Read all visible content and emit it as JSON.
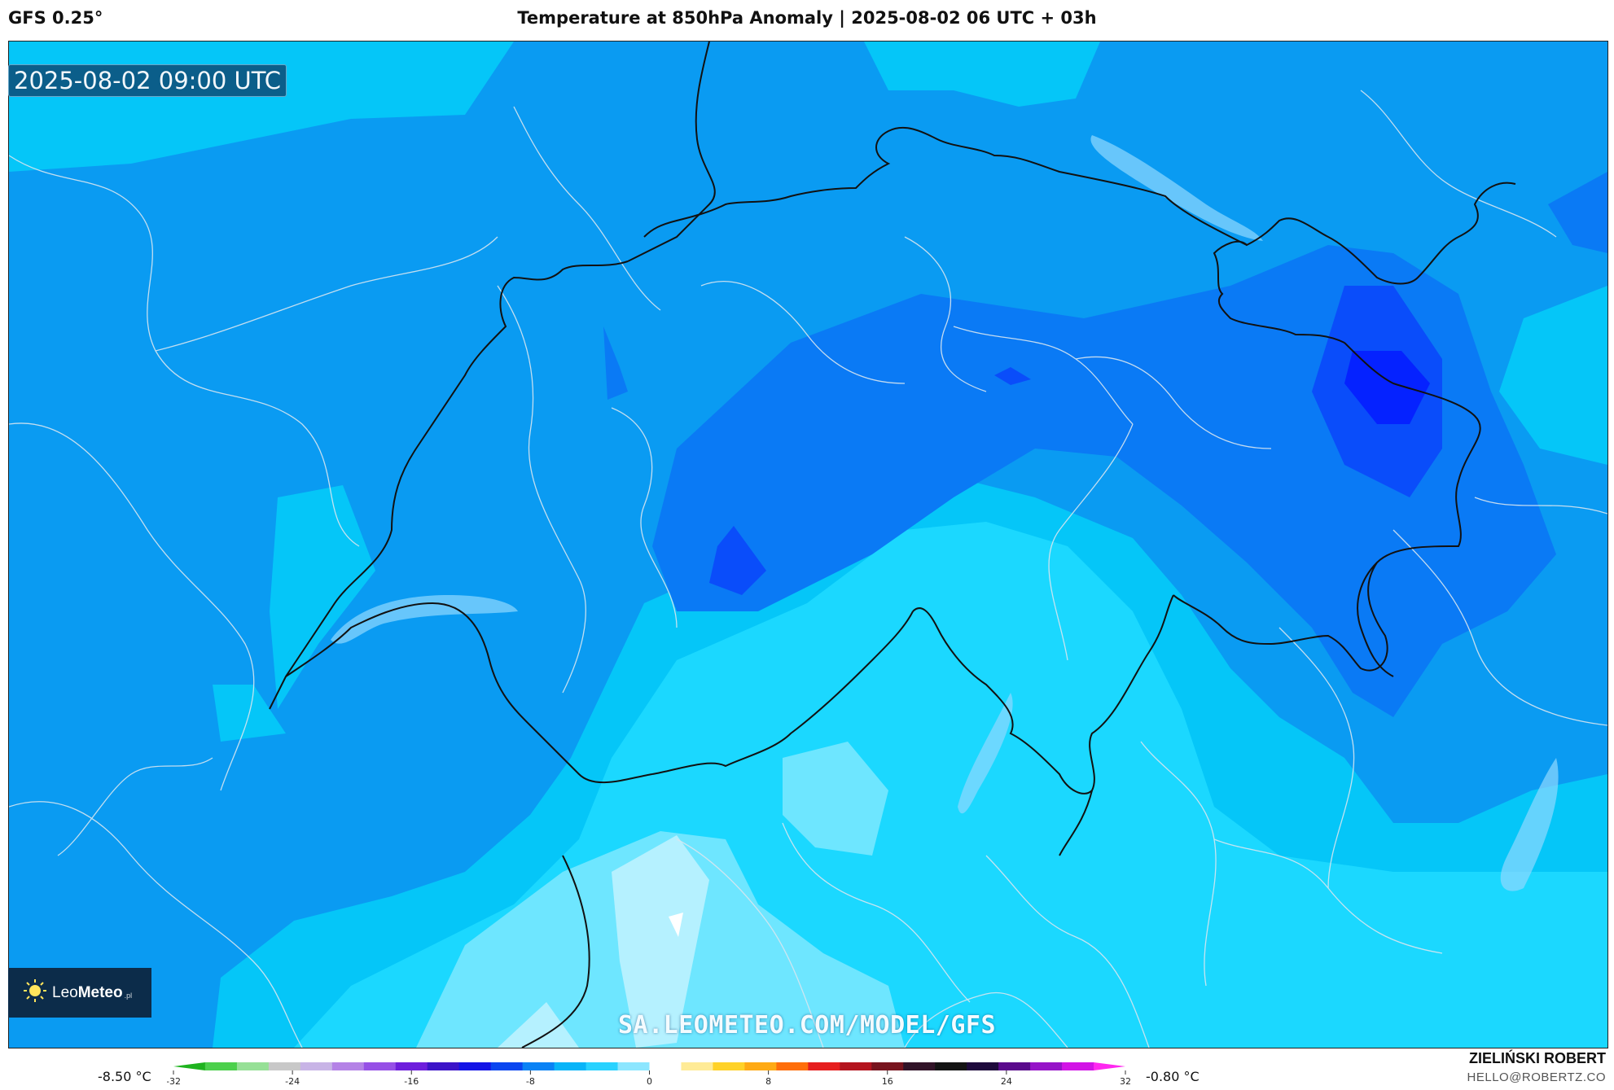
{
  "header": {
    "model": "GFS 0.25°",
    "title": "Temperature at 850hPa Anomaly | 2025-08-02 06 UTC + 03h"
  },
  "map": {
    "valid_time": "2025-08-02 09:00 UTC",
    "watermark": "SA.LEOMETEO.COM/MODEL/GFS",
    "logo": {
      "name_light": "Leo",
      "name_bold": "Meteo",
      "tld": ".pl"
    },
    "colors": {
      "anomaly_-8": "#0522ff",
      "anomaly_-7": "#0a4dfa",
      "anomaly_-6": "#0a7af5",
      "anomaly_-5": "#0a9bf2",
      "anomaly_-4": "#05c6f8",
      "anomaly_-3": "#1bd8ff",
      "anomaly_-2": "#6ee6ff",
      "anomaly_-1": "#b5f1ff"
    }
  },
  "colorbar": {
    "min_label": "-8.50 °C",
    "max_label": "-0.80 °C",
    "ticks": [
      "-32",
      "-24",
      "-16",
      "-8",
      "0",
      "8",
      "16",
      "24",
      "32"
    ],
    "range": [
      -32,
      32
    ],
    "colors": [
      "#1fb31f",
      "#4cd04c",
      "#96e096",
      "#c8c8c8",
      "#c8b4e6",
      "#b482e6",
      "#9650e6",
      "#6e1edc",
      "#3c14c8",
      "#1414e6",
      "#0a46f0",
      "#0a82f5",
      "#08b4f8",
      "#28d2ff",
      "#8ce6ff",
      "#ffffff",
      "#ffeb96",
      "#ffd228",
      "#ffaa14",
      "#ff6e0a",
      "#e61e1e",
      "#b4141e",
      "#78141e",
      "#321428",
      "#141414",
      "#1e0a3c",
      "#5a0a8c",
      "#9614c8",
      "#d214e6",
      "#ff28f0"
    ]
  },
  "footer": {
    "author": "ZIELIŃSKI ROBERT",
    "email": "HELLO@ROBERTZ.CO"
  }
}
